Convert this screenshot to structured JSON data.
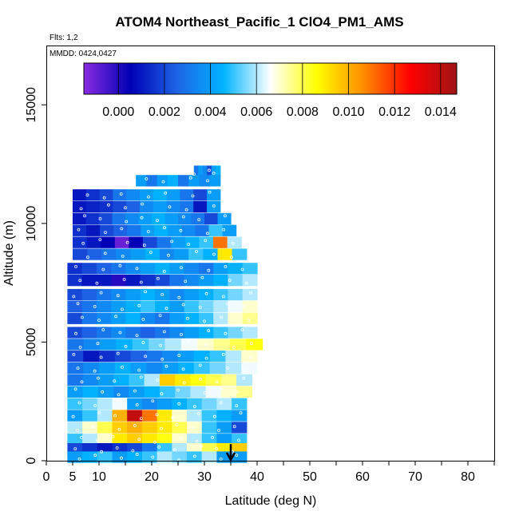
{
  "header": {
    "title": "ATOM4 Northeast_Pacific_1 ClO4_PM1_AMS",
    "flights": "Flts: 1,2",
    "dates": "MMDD: 0424,0427"
  },
  "chart_data": {
    "type": "heatmap",
    "title": "ATOM4 Northeast_Pacific_1 ClO4_PM1_AMS",
    "xlabel": "Latitude (deg N)",
    "ylabel": "Altitude (m)",
    "xlim": [
      0,
      85
    ],
    "ylim": [
      0,
      17500
    ],
    "x_ticks": [
      0,
      5,
      10,
      20,
      30,
      40,
      50,
      60,
      70,
      80
    ],
    "x_tick_labels": [
      "0",
      "5",
      "10",
      "20",
      "30",
      "40",
      "50",
      "60",
      "70",
      "80"
    ],
    "y_ticks": [
      0,
      5000,
      10000,
      15000
    ],
    "y_tick_labels": [
      "0",
      "5000",
      "10000",
      "15000"
    ],
    "colorbar": {
      "min": -0.0015,
      "max": 0.0147,
      "ticks": [
        0.0,
        0.002,
        0.004,
        0.006,
        0.008,
        0.01,
        0.012,
        0.014
      ],
      "tick_labels": [
        "0.000",
        "0.002",
        "0.004",
        "0.006",
        "0.008",
        "0.010",
        "0.012",
        "0.014"
      ],
      "colors": [
        "#8a2be2",
        "#0000b4",
        "#1e64e6",
        "#00b4ff",
        "#ffffff",
        "#ffff00",
        "#ff8c00",
        "#ff0000",
        "#a01414"
      ]
    },
    "annotation_arrow": {
      "x": 35,
      "y_top": 700,
      "y_bottom": 0,
      "direction": "down"
    },
    "bands": [
      {
        "alt": 12200,
        "x0": 28,
        "x1": 33,
        "values": [
          0.003,
          0.004,
          0.0035,
          0.002,
          0.004,
          0.0045
        ]
      },
      {
        "alt": 11800,
        "x0": 17,
        "x1": 33,
        "values": [
          0.004,
          0.003,
          0.004,
          0.0045,
          0.003,
          0.004,
          0.0035,
          0.004
        ]
      },
      {
        "alt": 11200,
        "x0": 5,
        "x1": 33,
        "values": [
          0.001,
          0.0015,
          0.002,
          0.003,
          0.0035,
          0.004,
          0.0045,
          0.004,
          0.003,
          0.002,
          0.004
        ]
      },
      {
        "alt": 10700,
        "x0": 5,
        "x1": 33,
        "values": [
          0.001,
          0.0012,
          0.0015,
          0.002,
          0.0025,
          0.0035,
          0.004,
          0.0035,
          0.003,
          0.001,
          0.004
        ]
      },
      {
        "alt": 10200,
        "x0": 5,
        "x1": 35,
        "values": [
          0.001,
          0.0015,
          0.002,
          0.003,
          0.0035,
          0.004,
          0.0045,
          0.004,
          0.0035,
          0.003,
          0.002,
          0.004
        ]
      },
      {
        "alt": 9700,
        "x0": 5,
        "x1": 36,
        "values": [
          0.0015,
          0.001,
          0.002,
          0.0025,
          0.003,
          0.004,
          0.0045,
          0.004,
          0.0035,
          0.003,
          0.005,
          0.004
        ]
      },
      {
        "alt": 9200,
        "x0": 5,
        "x1": 37,
        "values": [
          0.0015,
          0.001,
          0.0005,
          -0.001,
          0.0005,
          0.002,
          0.003,
          0.004,
          0.0045,
          0.005,
          0.011,
          0.006
        ]
      },
      {
        "alt": 8700,
        "x0": 5,
        "x1": 38,
        "values": [
          0.002,
          0.0025,
          0.003,
          0.0035,
          0.004,
          0.0045,
          0.0035,
          0.004,
          0.005,
          0.0045,
          0.009,
          0.005
        ]
      },
      {
        "alt": 8100,
        "x0": 4,
        "x1": 40,
        "values": [
          0.0015,
          0.002,
          0.0025,
          0.003,
          0.0035,
          0.004,
          0.0045,
          0.004,
          0.0035,
          0.003,
          0.004,
          0.0045,
          0.005
        ]
      },
      {
        "alt": 7600,
        "x0": 4,
        "x1": 40,
        "values": [
          0.0015,
          0.001,
          0.001,
          0.0,
          0.001,
          0.0015,
          0.002,
          0.003,
          0.0035,
          0.004,
          0.0045,
          0.0055,
          0.006
        ]
      },
      {
        "alt": 7000,
        "x0": 4,
        "x1": 40,
        "values": [
          0.002,
          0.0025,
          0.003,
          0.0035,
          0.004,
          0.0045,
          0.004,
          0.0035,
          0.004,
          0.0045,
          0.005,
          0.0055,
          0.006
        ]
      },
      {
        "alt": 6500,
        "x0": 4,
        "x1": 40,
        "values": [
          0.0025,
          0.003,
          0.0035,
          0.004,
          0.0045,
          0.005,
          0.0045,
          0.004,
          0.005,
          0.0055,
          0.006,
          0.0065,
          0.007
        ]
      },
      {
        "alt": 6000,
        "x0": 4,
        "x1": 40,
        "values": [
          0.002,
          0.003,
          0.0035,
          0.004,
          0.0045,
          0.0035,
          0.003,
          0.004,
          0.0045,
          0.005,
          0.006,
          0.007,
          0.0075
        ]
      },
      {
        "alt": 5400,
        "x0": 4,
        "x1": 40,
        "values": [
          0.002,
          0.0025,
          0.003,
          0.0035,
          0.003,
          0.0025,
          0.003,
          0.0035,
          0.004,
          0.0045,
          0.005,
          0.0055,
          0.006
        ]
      },
      {
        "alt": 4900,
        "x0": 4,
        "x1": 41,
        "values": [
          0.003,
          0.0035,
          0.004,
          0.0045,
          0.005,
          0.0055,
          0.006,
          0.0065,
          0.007,
          0.0075,
          0.008,
          0.0085
        ]
      },
      {
        "alt": 4400,
        "x0": 4,
        "x1": 40,
        "values": [
          0.002,
          0.001,
          0.0015,
          0.002,
          0.0025,
          0.003,
          0.0035,
          0.004,
          0.0045,
          0.005,
          0.006,
          0.007
        ]
      },
      {
        "alt": 3900,
        "x0": 4,
        "x1": 40,
        "values": [
          0.003,
          0.0035,
          0.004,
          0.0045,
          0.004,
          0.0035,
          0.004,
          0.0045,
          0.005,
          0.0055,
          0.006,
          0.0065
        ]
      },
      {
        "alt": 3400,
        "x0": 4,
        "x1": 39,
        "values": [
          0.003,
          0.0035,
          0.004,
          0.0045,
          0.005,
          0.006,
          0.0095,
          0.009,
          0.0085,
          0.008,
          0.0075,
          0.006
        ]
      },
      {
        "alt": 2900,
        "x0": 4,
        "x1": 39,
        "values": [
          0.004,
          0.0045,
          0.004,
          0.0035,
          0.004,
          0.0045,
          0.005,
          0.0055,
          0.006,
          0.0065,
          0.007,
          0.0075
        ]
      },
      {
        "alt": 2400,
        "x0": 4,
        "x1": 38,
        "values": [
          0.005,
          0.0055,
          0.006,
          0.0065,
          0.004,
          0.0035,
          0.004,
          0.0045,
          0.005,
          0.0055,
          0.006,
          0.005
        ]
      },
      {
        "alt": 1900,
        "x0": 4,
        "x1": 38,
        "values": [
          0.004,
          0.005,
          0.006,
          0.01,
          0.014,
          0.011,
          0.009,
          0.007,
          0.006,
          0.005,
          0.0045,
          0.004
        ]
      },
      {
        "alt": 1400,
        "x0": 4,
        "x1": 38,
        "values": [
          0.006,
          0.007,
          0.008,
          0.0095,
          0.01,
          0.0095,
          0.009,
          0.008,
          0.007,
          0.005,
          0.004,
          0.002
        ]
      },
      {
        "alt": 900,
        "x0": 4,
        "x1": 38,
        "values": [
          0.005,
          0.006,
          0.007,
          0.009,
          0.0095,
          0.009,
          0.0085,
          0.007,
          0.006,
          0.005,
          0.004,
          0.005
        ]
      },
      {
        "alt": 500,
        "x0": 4,
        "x1": 38,
        "values": [
          0.002,
          0.0015,
          0.001,
          0.0015,
          0.002,
          0.003,
          0.005,
          0.006,
          0.007,
          0.008,
          0.009,
          0.0095
        ]
      },
      {
        "alt": 150,
        "x0": 4,
        "x1": 38,
        "values": [
          0.004,
          0.0045,
          0.005,
          0.004,
          0.0045,
          0.005,
          0.006,
          0.0055,
          0.005,
          0.006,
          0.004,
          0.004
        ]
      }
    ]
  }
}
